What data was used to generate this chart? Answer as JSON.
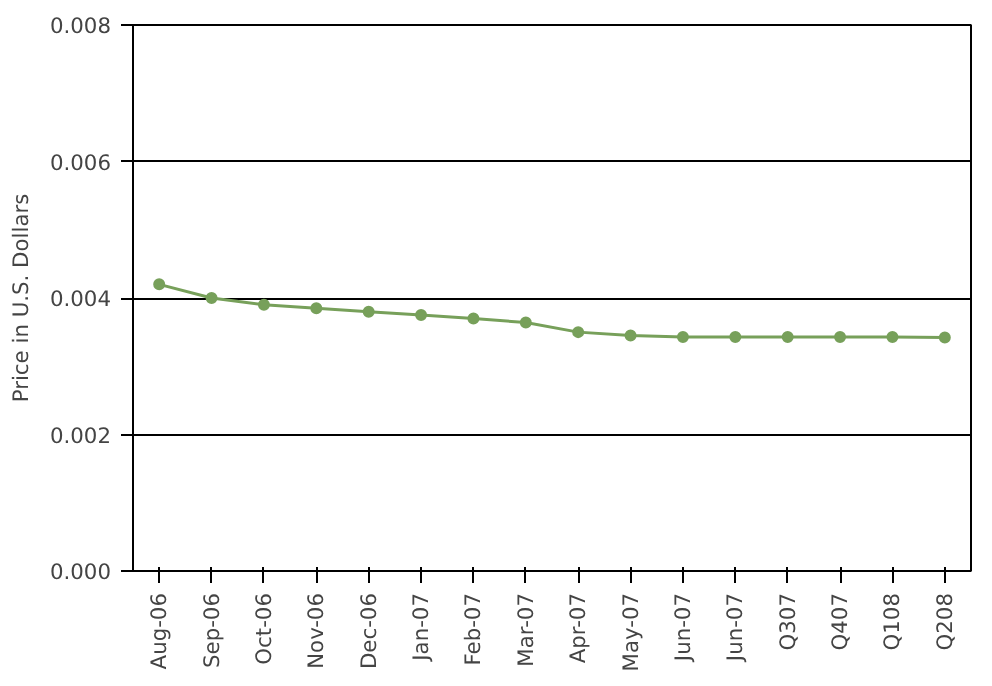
{
  "chart_data": {
    "type": "line",
    "ylabel": "Price in U.S. Dollars",
    "categories": [
      "Aug-06",
      "Sep-06",
      "Oct-06",
      "Nov-06",
      "Dec-06",
      "Jan-07",
      "Feb-07",
      "Mar-07",
      "Apr-07",
      "May-07",
      "Jun-07",
      "Jun-07",
      "Q307",
      "Q407",
      "Q108",
      "Q208"
    ],
    "series": [
      {
        "color": "#77a05a",
        "values": [
          0.0042,
          0.004,
          0.0039,
          0.00385,
          0.0038,
          0.00375,
          0.0037,
          0.00364,
          0.0035,
          0.00345,
          0.00343,
          0.00343,
          0.00343,
          0.00343,
          0.00343,
          0.00342
        ]
      }
    ],
    "ylim": [
      0,
      0.008
    ],
    "yticks": [
      {
        "value": 0,
        "label": "0.000"
      },
      {
        "value": 0.002,
        "label": "0.002"
      },
      {
        "value": 0.004,
        "label": "0.004"
      },
      {
        "value": 0.006,
        "label": "0.006"
      },
      {
        "value": 0.008,
        "label": "0.008"
      }
    ],
    "grid": "y",
    "marker": "circle",
    "line_style": "solid"
  }
}
